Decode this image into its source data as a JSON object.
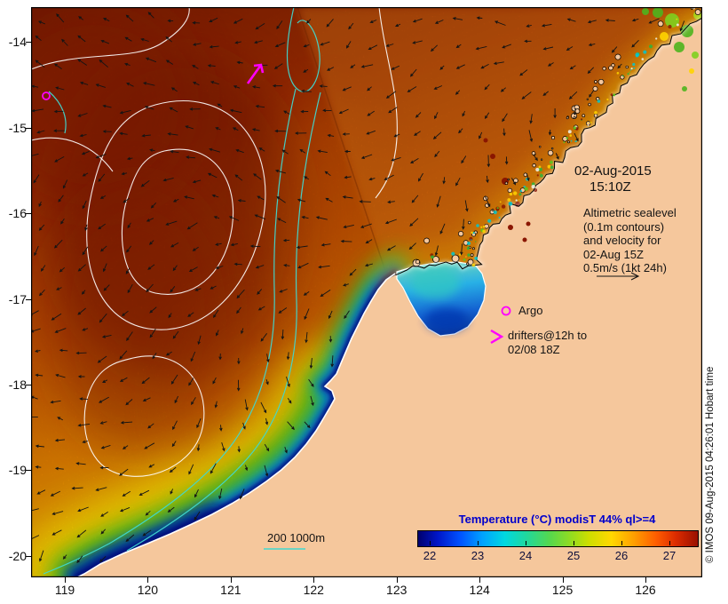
{
  "map": {
    "date_line1": "02-Aug-2015",
    "date_line2": "15:10Z",
    "altimetry_lines": [
      "Altimetric sealevel",
      "(0.1m contours)",
      "and velocity for",
      "02-Aug 15Z",
      "0.5m/s (1kt 24h)"
    ],
    "argo_label": "Argo",
    "drifter_line1": "drifters@12h to",
    "drifter_line2": "02/08 18Z",
    "bathymetry_legend": "200  1000m",
    "copyright": "© IMOS 09-Aug-2015 04:26:01 Hobart time"
  },
  "colorbar": {
    "title": "Temperature (°C) modisT 44% ql>=4",
    "tick_labels": [
      "22",
      "23",
      "24",
      "25",
      "26",
      "27"
    ]
  },
  "axes": {
    "x_tick_labels": [
      "119",
      "120",
      "121",
      "122",
      "123",
      "124",
      "125",
      "126"
    ],
    "y_tick_labels": [
      "-14",
      "-15",
      "-16",
      "-17",
      "-18",
      "-19",
      "-20"
    ]
  },
  "colors": {
    "land": "#f5c79c",
    "marker_magenta": "#ff00ff",
    "bathymetry_cyan": "#40d8d0",
    "sealevel_contour_white": "#ffffff",
    "colorbar_title_blue": "#0000cc",
    "annotation_text": "#141414"
  }
}
